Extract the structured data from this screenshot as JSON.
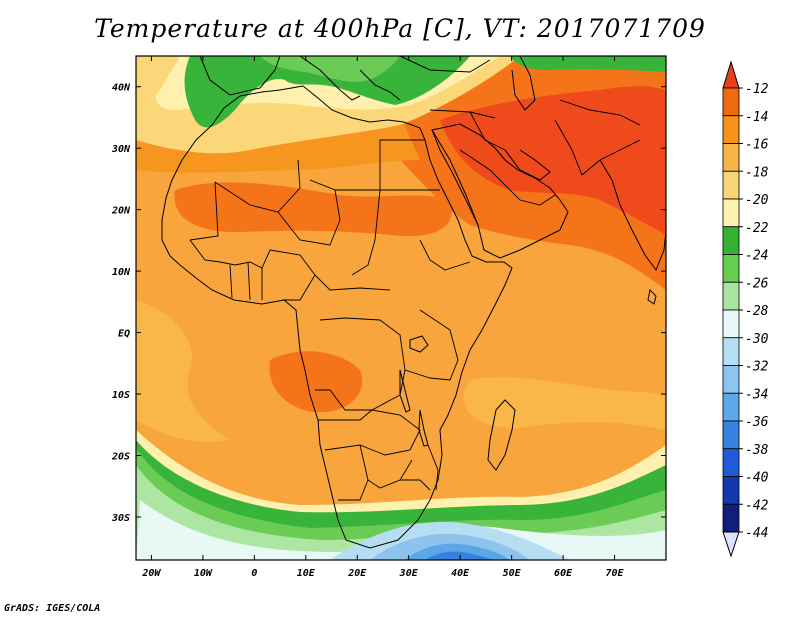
{
  "title": "Temperature at 400hPa [C], VT: 2017071709",
  "credit": "GrADS: IGES/COLA",
  "lon_ticks": [
    "20W",
    "10W",
    "0",
    "10E",
    "20E",
    "30E",
    "40E",
    "50E",
    "60E",
    "70E"
  ],
  "lat_ticks": [
    "40N",
    "30N",
    "20N",
    "10N",
    "EQ",
    "10S",
    "20S",
    "30S"
  ],
  "colorbar": {
    "labels": [
      "-12",
      "-14",
      "-16",
      "-18",
      "-20",
      "-22",
      "-24",
      "-26",
      "-28",
      "-30",
      "-32",
      "-34",
      "-36",
      "-38",
      "-40",
      "-42",
      "-44"
    ],
    "colors": [
      "#e8401c",
      "#f06a10",
      "#f7921b",
      "#f8b54a",
      "#f9d57a",
      "#fdf3b0",
      "#33b233",
      "#66cc52",
      "#a9e5a0",
      "#e7f8f6",
      "#b6def4",
      "#8ec4ef",
      "#5ea8e8",
      "#3a82e0",
      "#1f5bd6",
      "#1438b0",
      "#0f1f7a"
    ],
    "top_cap_color": "#e8401c",
    "bottom_cap_color": "#e0e0ff"
  },
  "map": {
    "extent": {
      "lon": [
        -23,
        80
      ],
      "lat": [
        -37,
        45
      ]
    },
    "background_color": "#f7a53c",
    "colors": {
      "n12": "#ee4a1c",
      "n14": "#f5741a",
      "n16": "#f7961f",
      "n18": "#f9b74a",
      "n20": "#fbd77a",
      "n22": "#fff0ae",
      "n24": "#39b43a",
      "n26": "#6acb55",
      "n28": "#ace6a2",
      "n30": "#e7f8f5",
      "n32": "#b6ddf2",
      "n34": "#8ec3ee",
      "n36": "#5aa6e6",
      "n38": "#3780dd",
      "n40": "#1f5bd6"
    }
  }
}
